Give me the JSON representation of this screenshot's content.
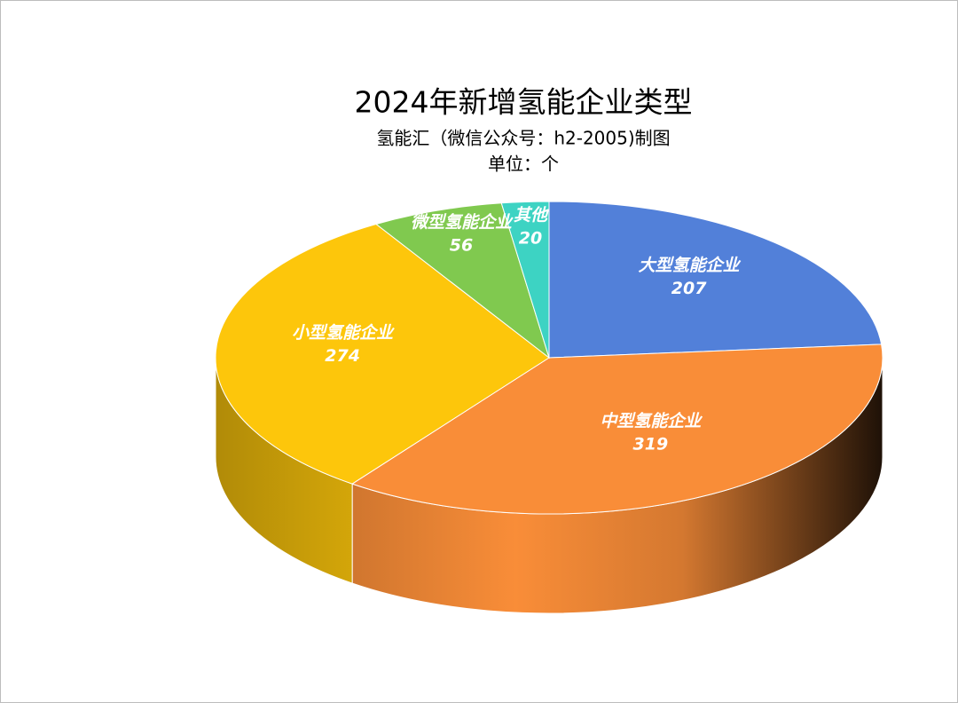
{
  "chart_data": {
    "type": "pie3d",
    "title": "2024年新增氢能企业类型",
    "subtitle": "氢能汇（微信公众号：h2-2005)制图",
    "unit": "单位：个",
    "categories": [
      "大型氢能企业",
      "中型氢能企业",
      "小型氢能企业",
      "微型氢能企业",
      "其他"
    ],
    "values": [
      207,
      319,
      274,
      56,
      20
    ],
    "colors": [
      "#5280d9",
      "#f98d38",
      "#fdc60b",
      "#80c94f",
      "#3dd3c3"
    ]
  }
}
